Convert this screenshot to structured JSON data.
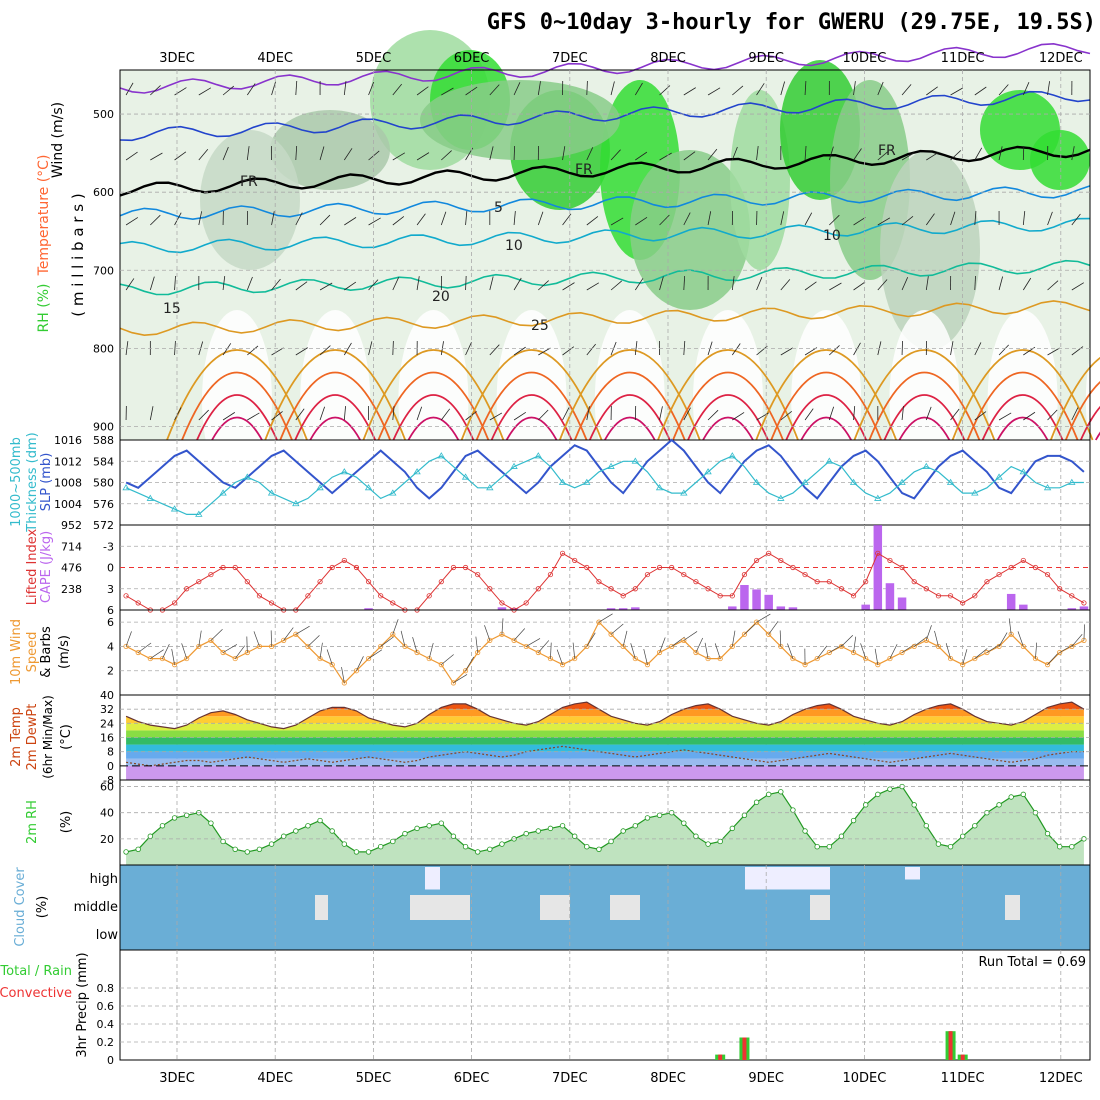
{
  "title": "GFS 0~10day 3-hourly for GWERU (29.75E, 19.5S)",
  "days": [
    "3DEC",
    "4DEC",
    "5DEC",
    "6DEC",
    "7DEC",
    "8DEC",
    "9DEC",
    "10DEC",
    "11DEC",
    "12DEC"
  ],
  "colors": {
    "temperature": "#ff6633",
    "rh": "#33cc33",
    "slp": "#3355cc",
    "thickness": "#33bbcc",
    "cape": "#bb66ee",
    "lifted": "#dd3333",
    "wind": "#ee9933",
    "cloud": "#6aaed6",
    "precip_total": "#33cc33",
    "precip_conv": "#ee3333"
  },
  "panels": {
    "upper": {
      "ylabels": [
        "Wind (m/s)",
        "Temperature (°C)",
        "RH (%)"
      ],
      "unit": "( m i l l i b a r s )",
      "yticks": [
        "500",
        "600",
        "700",
        "800",
        "900"
      ]
    },
    "slp": {
      "ylabels": [
        "1000~500mb",
        "Thickness (dm)",
        "SLP (mb)"
      ],
      "left_ticks": [
        "588",
        "584",
        "580",
        "576",
        "572"
      ],
      "right_ticks": [
        "1016",
        "1012",
        "1008",
        "1004"
      ]
    },
    "cape": {
      "ylabels": [
        "Lifted Index",
        "CAPE (J/kg)"
      ],
      "left_ticks": [
        "-3",
        "0",
        "3",
        "6"
      ],
      "right_ticks": [
        "952",
        "714",
        "476",
        "238"
      ]
    },
    "wind": {
      "ylabels": [
        "10m Wind",
        "Speed",
        "& Barbs"
      ],
      "unit": "(m/s)",
      "yticks": [
        "6",
        "4",
        "2"
      ]
    },
    "temp": {
      "ylabels": [
        "2m Temp",
        "2m DewPt",
        "(6hr Min/Max)"
      ],
      "unit": "(°C)",
      "yticks": [
        "40",
        "32",
        "24",
        "16",
        "8",
        "0",
        "-8"
      ]
    },
    "rh": {
      "ylabels": [
        "2m RH"
      ],
      "unit": "(%)",
      "yticks": [
        "60",
        "40",
        "20"
      ]
    },
    "cloud": {
      "ylabels": [
        "Cloud Cover"
      ],
      "unit": "(%)",
      "levels": [
        "high",
        "middle",
        "low"
      ]
    },
    "precip": {
      "ylabels": [
        "Total / Rain",
        "Convective",
        "3hr Precip (mm)"
      ],
      "yticks": [
        "0.8",
        "0.6",
        "0.4",
        "0.2",
        "0"
      ],
      "run_total": "Run Total = 0.69"
    }
  },
  "chart_data": [
    {
      "type": "line",
      "title": "Sea level pressure and 1000-500mb thickness",
      "x_unit": "3-hourly steps from 2 DEC 12Z",
      "series": [
        {
          "name": "SLP (mb)",
          "values": [
            1008,
            1007,
            1009,
            1011,
            1013,
            1014,
            1012,
            1010,
            1008,
            1007,
            1009,
            1011,
            1013,
            1014,
            1012,
            1010,
            1008,
            1006,
            1008,
            1010,
            1012,
            1014,
            1012,
            1010,
            1007,
            1005,
            1007,
            1010,
            1013,
            1014,
            1012,
            1010,
            1008,
            1006,
            1008,
            1011,
            1013,
            1015,
            1014,
            1011,
            1008,
            1006,
            1009,
            1012,
            1014,
            1016,
            1014,
            1011,
            1008,
            1006,
            1009,
            1012,
            1014,
            1015,
            1013,
            1010,
            1007,
            1005,
            1008,
            1011,
            1013,
            1014,
            1012,
            1009,
            1006,
            1005,
            1008,
            1011,
            1013,
            1014,
            1012,
            1010,
            1007,
            1006,
            1009,
            1012,
            1013,
            1013,
            1012,
            1010
          ]
        },
        {
          "name": "Thickness (dm)",
          "values": [
            579,
            578,
            577,
            576,
            575,
            574,
            574,
            576,
            578,
            580,
            581,
            580,
            578,
            577,
            576,
            577,
            579,
            581,
            582,
            581,
            579,
            577,
            578,
            580,
            582,
            584,
            585,
            583,
            581,
            579,
            579,
            581,
            583,
            584,
            585,
            583,
            580,
            579,
            580,
            582,
            583,
            584,
            584,
            582,
            579,
            578,
            578,
            580,
            582,
            584,
            585,
            583,
            580,
            578,
            577,
            578,
            580,
            582,
            584,
            583,
            580,
            578,
            577,
            578,
            580,
            582,
            583,
            582,
            580,
            578,
            578,
            579,
            581,
            583,
            582,
            580,
            579,
            579,
            580,
            580
          ]
        }
      ]
    },
    {
      "type": "bar",
      "title": "CAPE (J/kg) and Lifted Index",
      "series": [
        {
          "name": "CAPE (J/kg)",
          "values": [
            0,
            0,
            0,
            0,
            0,
            0,
            0,
            0,
            0,
            0,
            0,
            0,
            0,
            0,
            0,
            0,
            0,
            0,
            0,
            0,
            20,
            0,
            0,
            0,
            0,
            0,
            0,
            0,
            0,
            0,
            0,
            30,
            20,
            0,
            0,
            0,
            0,
            0,
            0,
            0,
            20,
            20,
            30,
            0,
            0,
            0,
            0,
            0,
            0,
            0,
            40,
            280,
            230,
            170,
            40,
            30,
            0,
            0,
            0,
            0,
            0,
            60,
            950,
            300,
            140,
            0,
            0,
            0,
            0,
            0,
            0,
            0,
            0,
            180,
            60,
            0,
            0,
            0,
            20,
            40
          ]
        },
        {
          "name": "Lifted Index",
          "values": [
            4,
            5,
            6,
            6,
            5,
            3,
            2,
            1,
            0,
            0,
            2,
            4,
            5,
            6,
            6,
            4,
            2,
            0,
            -1,
            0,
            2,
            4,
            5,
            6,
            6,
            4,
            2,
            0,
            0,
            1,
            3,
            5,
            6,
            5,
            3,
            1,
            -2,
            -1,
            0,
            2,
            3,
            4,
            3,
            1,
            0,
            0,
            1,
            2,
            3,
            4,
            4,
            1,
            -1,
            -2,
            -1,
            0,
            1,
            2,
            2,
            3,
            4,
            2,
            -2,
            -1,
            0,
            2,
            3,
            4,
            4,
            5,
            4,
            2,
            1,
            0,
            -1,
            0,
            1,
            3,
            4,
            5
          ]
        }
      ]
    },
    {
      "type": "line",
      "title": "10m Wind Speed",
      "series": [
        {
          "name": "Speed (m/s)",
          "values": [
            4,
            3.5,
            3,
            3,
            2.5,
            3,
            4,
            4.5,
            3.5,
            3,
            3.5,
            4,
            4,
            4.5,
            5,
            4,
            3,
            2.5,
            1,
            2,
            3,
            4,
            5,
            4,
            3.5,
            3,
            2.5,
            1,
            2,
            3.5,
            4.5,
            5,
            4.5,
            4,
            3.5,
            3,
            2.5,
            3,
            4,
            6,
            5,
            4,
            3,
            2.5,
            3.5,
            4,
            4.5,
            3.5,
            3,
            3,
            4,
            5,
            6,
            5,
            4,
            3,
            2.5,
            3,
            3.5,
            4,
            3.5,
            3,
            2.5,
            3,
            3.5,
            4,
            4.5,
            4,
            3,
            2.5,
            3,
            3.5,
            4,
            5,
            4,
            3,
            2.5,
            3.5,
            4,
            4.5
          ]
        }
      ]
    },
    {
      "type": "area",
      "title": "2m Temp (°C)",
      "series": [
        {
          "name": "2m Temp (°C)",
          "values": [
            28,
            25,
            23,
            22,
            21,
            23,
            27,
            30,
            31,
            29,
            26,
            24,
            22,
            21,
            23,
            27,
            31,
            33,
            33,
            31,
            27,
            25,
            23,
            22,
            24,
            29,
            33,
            35,
            35,
            32,
            28,
            26,
            24,
            23,
            25,
            29,
            33,
            35,
            36,
            32,
            28,
            26,
            24,
            23,
            25,
            29,
            32,
            34,
            35,
            32,
            28,
            26,
            24,
            23,
            25,
            29,
            32,
            34,
            35,
            32,
            28,
            26,
            24,
            23,
            25,
            29,
            32,
            34,
            35,
            32,
            28,
            25,
            24,
            23,
            25,
            29,
            33,
            35,
            36,
            32
          ]
        },
        {
          "name": "2m DewPt (°C)",
          "values": [
            2,
            1,
            0,
            1,
            2,
            3,
            3,
            2,
            3,
            4,
            5,
            4,
            3,
            2,
            3,
            4,
            3,
            2,
            3,
            4,
            5,
            4,
            3,
            2,
            3,
            5,
            6,
            7,
            8,
            7,
            6,
            5,
            6,
            8,
            9,
            10,
            11,
            10,
            9,
            8,
            7,
            6,
            5,
            6,
            7,
            8,
            9,
            8,
            7,
            6,
            5,
            4,
            3,
            2,
            3,
            4,
            5,
            6,
            7,
            6,
            5,
            4,
            3,
            2,
            3,
            4,
            5,
            6,
            7,
            6,
            5,
            4,
            3,
            2,
            3,
            4,
            6,
            7,
            8,
            8
          ]
        }
      ]
    },
    {
      "type": "area",
      "title": "2m RH (%)",
      "series": [
        {
          "name": "2m RH (%)",
          "values": [
            10,
            12,
            22,
            30,
            36,
            38,
            40,
            32,
            18,
            12,
            10,
            12,
            16,
            22,
            26,
            30,
            34,
            26,
            16,
            10,
            10,
            14,
            18,
            24,
            28,
            30,
            32,
            22,
            14,
            10,
            12,
            16,
            20,
            24,
            26,
            28,
            30,
            22,
            14,
            12,
            18,
            26,
            30,
            36,
            38,
            40,
            32,
            22,
            16,
            18,
            28,
            38,
            48,
            54,
            56,
            42,
            26,
            14,
            14,
            22,
            34,
            46,
            54,
            58,
            60,
            46,
            30,
            16,
            14,
            22,
            30,
            40,
            46,
            52,
            54,
            40,
            24,
            14,
            14,
            20
          ]
        }
      ]
    },
    {
      "type": "bar",
      "title": "3hr Precip (mm)",
      "run_total": 0.69,
      "series": [
        {
          "name": "Total / Rain",
          "values": [
            0,
            0,
            0,
            0,
            0,
            0,
            0,
            0,
            0,
            0,
            0,
            0,
            0,
            0,
            0,
            0,
            0,
            0,
            0,
            0,
            0,
            0,
            0,
            0,
            0,
            0,
            0,
            0,
            0,
            0,
            0,
            0,
            0,
            0,
            0,
            0,
            0,
            0,
            0,
            0,
            0,
            0,
            0,
            0,
            0,
            0,
            0,
            0,
            0,
            0.06,
            0,
            0.25,
            0,
            0,
            0,
            0,
            0,
            0,
            0,
            0,
            0,
            0,
            0,
            0,
            0,
            0,
            0,
            0,
            0.32,
            0.06,
            0,
            0,
            0,
            0,
            0,
            0,
            0,
            0,
            0,
            0
          ]
        },
        {
          "name": "Convective",
          "values": [
            0,
            0,
            0,
            0,
            0,
            0,
            0,
            0,
            0,
            0,
            0,
            0,
            0,
            0,
            0,
            0,
            0,
            0,
            0,
            0,
            0,
            0,
            0,
            0,
            0,
            0,
            0,
            0,
            0,
            0,
            0,
            0,
            0,
            0,
            0,
            0,
            0,
            0,
            0,
            0,
            0,
            0,
            0,
            0,
            0,
            0,
            0,
            0,
            0,
            0.06,
            0,
            0.25,
            0,
            0,
            0,
            0,
            0,
            0,
            0,
            0,
            0,
            0,
            0,
            0,
            0,
            0,
            0,
            0,
            0.32,
            0.06,
            0,
            0,
            0,
            0,
            0,
            0,
            0,
            0,
            0,
            0
          ]
        }
      ]
    },
    {
      "type": "heatmap",
      "title": "Upper-air RH / Temperature / Wind cross-section",
      "levels_mb": [
        450,
        500,
        600,
        700,
        800,
        900
      ],
      "temp_contours_c": [
        -5,
        5,
        10,
        15,
        20,
        25,
        30,
        35
      ],
      "freezing_label": "FR"
    }
  ]
}
